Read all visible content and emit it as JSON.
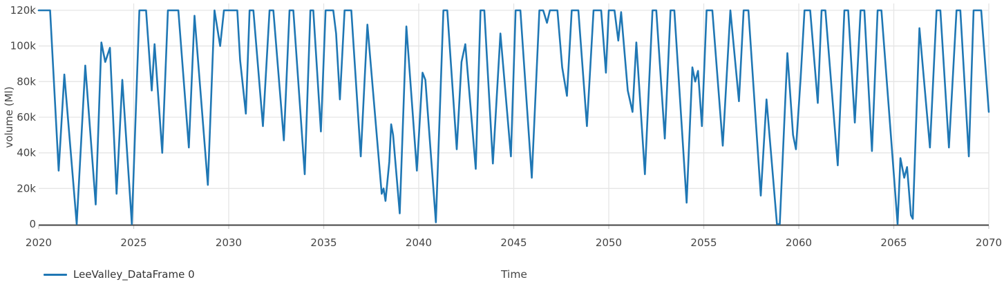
{
  "chart_data": {
    "type": "line",
    "title": "",
    "xlabel": "Time",
    "ylabel": "volume (Ml)",
    "xlim": [
      2020,
      2070
    ],
    "ylim": [
      0,
      124000
    ],
    "grid": true,
    "legend_position": "bottom-left",
    "x_ticks": [
      {
        "value": 2020,
        "label": "2020"
      },
      {
        "value": 2025,
        "label": "2025"
      },
      {
        "value": 2030,
        "label": "2030"
      },
      {
        "value": 2035,
        "label": "2035"
      },
      {
        "value": 2040,
        "label": "2040"
      },
      {
        "value": 2045,
        "label": "2045"
      },
      {
        "value": 2050,
        "label": "2050"
      },
      {
        "value": 2055,
        "label": "2055"
      },
      {
        "value": 2060,
        "label": "2060"
      },
      {
        "value": 2065,
        "label": "2065"
      },
      {
        "value": 2070,
        "label": "2070"
      }
    ],
    "y_ticks": [
      {
        "value": 0,
        "label": "0"
      },
      {
        "value": 20000,
        "label": "20k"
      },
      {
        "value": 40000,
        "label": "40k"
      },
      {
        "value": 60000,
        "label": "60k"
      },
      {
        "value": 80000,
        "label": "80k"
      },
      {
        "value": 100000,
        "label": "100k"
      },
      {
        "value": 120000,
        "label": "120k"
      }
    ],
    "series": [
      {
        "name": "LeeValley_DataFrame 0",
        "color": "#1f77b4",
        "points": [
          [
            2020.0,
            120000
          ],
          [
            2020.6,
            120000
          ],
          [
            2021.05,
            30000
          ],
          [
            2021.35,
            84000
          ],
          [
            2022.0,
            0
          ],
          [
            2022.45,
            89000
          ],
          [
            2023.0,
            11000
          ],
          [
            2023.3,
            102000
          ],
          [
            2023.5,
            91000
          ],
          [
            2023.75,
            99000
          ],
          [
            2024.1,
            17000
          ],
          [
            2024.4,
            81000
          ],
          [
            2024.9,
            0
          ],
          [
            2025.3,
            120000
          ],
          [
            2025.65,
            120000
          ],
          [
            2025.95,
            75000
          ],
          [
            2026.1,
            101000
          ],
          [
            2026.5,
            40000
          ],
          [
            2026.8,
            120000
          ],
          [
            2027.35,
            120000
          ],
          [
            2027.9,
            43000
          ],
          [
            2028.2,
            117000
          ],
          [
            2028.9,
            22000
          ],
          [
            2029.25,
            120000
          ],
          [
            2029.55,
            100000
          ],
          [
            2029.75,
            120000
          ],
          [
            2030.45,
            120000
          ],
          [
            2030.6,
            92000
          ],
          [
            2030.9,
            62000
          ],
          [
            2031.1,
            120000
          ],
          [
            2031.3,
            120000
          ],
          [
            2031.8,
            55000
          ],
          [
            2032.15,
            120000
          ],
          [
            2032.35,
            120000
          ],
          [
            2032.9,
            47000
          ],
          [
            2033.2,
            120000
          ],
          [
            2033.4,
            120000
          ],
          [
            2034.0,
            28000
          ],
          [
            2034.3,
            120000
          ],
          [
            2034.45,
            120000
          ],
          [
            2034.85,
            52000
          ],
          [
            2035.1,
            120000
          ],
          [
            2035.5,
            120000
          ],
          [
            2035.65,
            107000
          ],
          [
            2035.85,
            70000
          ],
          [
            2036.1,
            120000
          ],
          [
            2036.45,
            120000
          ],
          [
            2036.95,
            38000
          ],
          [
            2037.3,
            112000
          ],
          [
            2038.05,
            17000
          ],
          [
            2038.15,
            20000
          ],
          [
            2038.25,
            13000
          ],
          [
            2038.45,
            35000
          ],
          [
            2038.55,
            56000
          ],
          [
            2038.65,
            50000
          ],
          [
            2039.0,
            6000
          ],
          [
            2039.35,
            111000
          ],
          [
            2039.9,
            30000
          ],
          [
            2040.2,
            85000
          ],
          [
            2040.35,
            81000
          ],
          [
            2040.9,
            1000
          ],
          [
            2041.3,
            120000
          ],
          [
            2041.5,
            120000
          ],
          [
            2042.0,
            42000
          ],
          [
            2042.25,
            91000
          ],
          [
            2042.45,
            101000
          ],
          [
            2043.0,
            31000
          ],
          [
            2043.25,
            120000
          ],
          [
            2043.45,
            120000
          ],
          [
            2043.9,
            34000
          ],
          [
            2044.3,
            107000
          ],
          [
            2044.85,
            38000
          ],
          [
            2045.1,
            120000
          ],
          [
            2045.35,
            120000
          ],
          [
            2045.95,
            26000
          ],
          [
            2046.35,
            120000
          ],
          [
            2046.55,
            120000
          ],
          [
            2046.75,
            113000
          ],
          [
            2046.9,
            120000
          ],
          [
            2047.3,
            120000
          ],
          [
            2047.55,
            88000
          ],
          [
            2047.8,
            72000
          ],
          [
            2048.05,
            120000
          ],
          [
            2048.4,
            120000
          ],
          [
            2048.85,
            55000
          ],
          [
            2049.2,
            120000
          ],
          [
            2049.6,
            120000
          ],
          [
            2049.85,
            85000
          ],
          [
            2050.0,
            120000
          ],
          [
            2050.3,
            120000
          ],
          [
            2050.5,
            103000
          ],
          [
            2050.65,
            119000
          ],
          [
            2051.0,
            75000
          ],
          [
            2051.25,
            63000
          ],
          [
            2051.45,
            102000
          ],
          [
            2051.9,
            28000
          ],
          [
            2052.3,
            120000
          ],
          [
            2052.5,
            120000
          ],
          [
            2052.95,
            48000
          ],
          [
            2053.25,
            120000
          ],
          [
            2053.45,
            120000
          ],
          [
            2054.1,
            12000
          ],
          [
            2054.4,
            88000
          ],
          [
            2054.55,
            80000
          ],
          [
            2054.7,
            86000
          ],
          [
            2054.9,
            55000
          ],
          [
            2055.15,
            120000
          ],
          [
            2055.45,
            120000
          ],
          [
            2056.0,
            44000
          ],
          [
            2056.4,
            120000
          ],
          [
            2056.85,
            69000
          ],
          [
            2057.1,
            120000
          ],
          [
            2057.35,
            120000
          ],
          [
            2058.0,
            16000
          ],
          [
            2058.3,
            70000
          ],
          [
            2058.85,
            0
          ],
          [
            2059.0,
            0
          ],
          [
            2059.4,
            96000
          ],
          [
            2059.7,
            50000
          ],
          [
            2059.85,
            42000
          ],
          [
            2060.1,
            82000
          ],
          [
            2060.3,
            120000
          ],
          [
            2060.6,
            120000
          ],
          [
            2061.0,
            68000
          ],
          [
            2061.2,
            120000
          ],
          [
            2061.4,
            120000
          ],
          [
            2062.05,
            33000
          ],
          [
            2062.4,
            120000
          ],
          [
            2062.6,
            120000
          ],
          [
            2062.95,
            57000
          ],
          [
            2063.25,
            120000
          ],
          [
            2063.45,
            120000
          ],
          [
            2063.85,
            41000
          ],
          [
            2064.15,
            120000
          ],
          [
            2064.35,
            120000
          ],
          [
            2065.2,
            0
          ],
          [
            2065.35,
            37000
          ],
          [
            2065.55,
            26000
          ],
          [
            2065.7,
            32000
          ],
          [
            2065.9,
            5000
          ],
          [
            2066.0,
            3000
          ],
          [
            2066.35,
            110000
          ],
          [
            2066.9,
            43000
          ],
          [
            2067.25,
            120000
          ],
          [
            2067.45,
            120000
          ],
          [
            2067.9,
            43000
          ],
          [
            2068.3,
            120000
          ],
          [
            2068.5,
            120000
          ],
          [
            2068.95,
            38000
          ],
          [
            2069.2,
            120000
          ],
          [
            2069.6,
            120000
          ],
          [
            2070.0,
            63000
          ]
        ]
      }
    ]
  },
  "colors": {
    "background": "#ffffff",
    "grid": "#e5e5e5",
    "axis_line": "#424242",
    "tick_mark": "#cccccc",
    "tick_label": "#444444",
    "axis_title": "#444444",
    "legend_text": "#333333"
  }
}
